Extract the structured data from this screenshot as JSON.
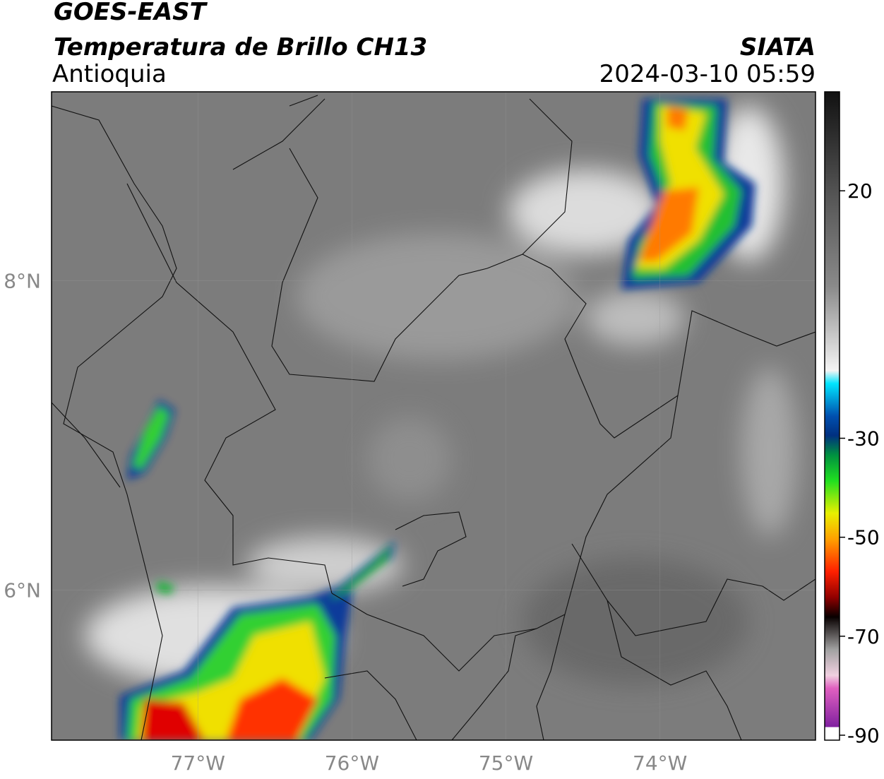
{
  "header": {
    "title": "GOES-EAST",
    "subtitle": "Temperatura de Brillo CH13",
    "region": "Antioquia",
    "agency": "SIATA",
    "timestamp": "2024-03-10 05:59"
  },
  "map": {
    "lonlim": [
      -77.95,
      -72.99
    ],
    "latlim": [
      5.03,
      9.22
    ],
    "lonticks": [
      {
        "value": -77,
        "label": "77°W"
      },
      {
        "value": -76,
        "label": "76°W"
      },
      {
        "value": -75,
        "label": "75°W"
      },
      {
        "value": -74,
        "label": "74°W"
      }
    ],
    "latticks": [
      {
        "value": 8,
        "label": "8°N"
      },
      {
        "value": 6,
        "label": "6°N"
      }
    ]
  },
  "colorbar": {
    "lim": [
      -91,
      40
    ],
    "ticks": [
      20,
      -30,
      -50,
      -70,
      -90
    ]
  }
}
